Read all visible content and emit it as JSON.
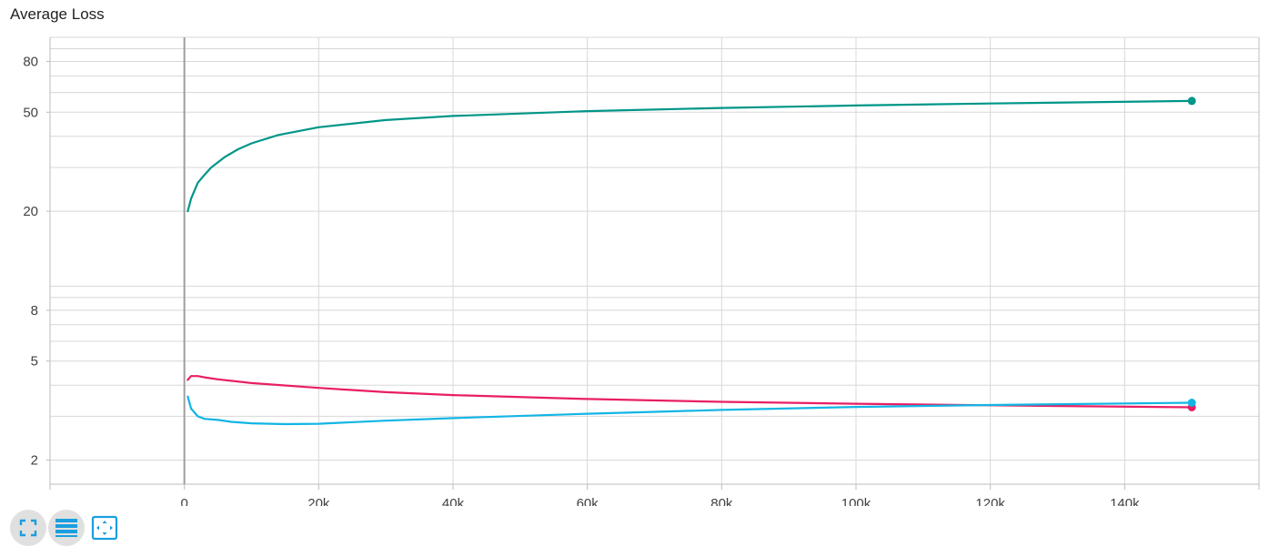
{
  "card": {
    "title": "Average Loss"
  },
  "colors": {
    "accent": "#1a9fe0",
    "grid": "#d8d8d8",
    "axis": "#9e9e9e"
  },
  "toolbar": {
    "buttons": [
      {
        "icon": "fullscreen-icon"
      },
      {
        "icon": "data-list-icon"
      },
      {
        "icon": "fit-domain-icon"
      }
    ]
  },
  "chart_data": {
    "type": "line",
    "title": "Average Loss",
    "xlabel": "",
    "ylabel": "",
    "y_scale": "log",
    "xlim": [
      -20000,
      160000
    ],
    "ylim": [
      1.6,
      100
    ],
    "x_ticks": [
      0,
      20000,
      40000,
      60000,
      80000,
      100000,
      120000,
      140000
    ],
    "x_tick_labels": [
      "0",
      "20k",
      "40k",
      "60k",
      "80k",
      "100k",
      "120k",
      "140k"
    ],
    "y_ticks": [
      2,
      5,
      8,
      20,
      50,
      80
    ],
    "y_tick_labels": [
      "2",
      "5",
      "8",
      "20",
      "50",
      "80"
    ],
    "grid": true,
    "legend": "none",
    "series": [
      {
        "color": "#009688",
        "x": [
          500,
          1000,
          2000,
          3000,
          4000,
          6000,
          8000,
          10000,
          14000,
          20000,
          30000,
          40000,
          60000,
          80000,
          100000,
          120000,
          150000
        ],
        "y": [
          20,
          22.5,
          26,
          28,
          30,
          33,
          35.5,
          37.5,
          40.5,
          43.5,
          46.5,
          48.3,
          50.5,
          52,
          53.2,
          54.2,
          55.5
        ]
      },
      {
        "color": "#e91e63",
        "x": [
          500,
          1000,
          2000,
          3000,
          5000,
          10000,
          20000,
          30000,
          40000,
          60000,
          80000,
          100000,
          120000,
          150000
        ],
        "y": [
          4.2,
          4.35,
          4.35,
          4.3,
          4.22,
          4.08,
          3.9,
          3.75,
          3.65,
          3.52,
          3.43,
          3.37,
          3.32,
          3.26
        ]
      },
      {
        "color": "#12b5e5",
        "x": [
          500,
          1000,
          2000,
          3000,
          5000,
          7000,
          10000,
          15000,
          20000,
          30000,
          40000,
          60000,
          80000,
          100000,
          120000,
          150000
        ],
        "y": [
          3.6,
          3.22,
          3.0,
          2.93,
          2.9,
          2.85,
          2.81,
          2.79,
          2.8,
          2.88,
          2.95,
          3.07,
          3.18,
          3.27,
          3.33,
          3.4
        ]
      }
    ]
  }
}
